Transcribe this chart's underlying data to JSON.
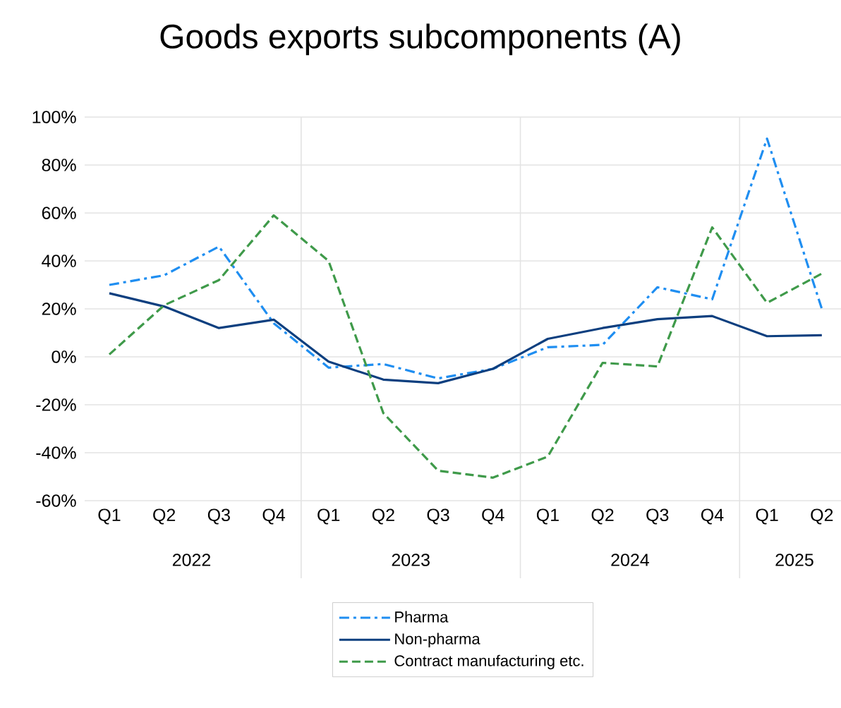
{
  "chart_data": {
    "type": "line",
    "title": "Goods exports subcomponents (A)",
    "categories": [
      "Q1",
      "Q2",
      "Q3",
      "Q4",
      "Q1",
      "Q2",
      "Q3",
      "Q4",
      "Q1",
      "Q2",
      "Q3",
      "Q4",
      "Q1",
      "Q2"
    ],
    "annotations": [
      "2022",
      "2023",
      "2024",
      "2025"
    ],
    "series": [
      {
        "name": "Pharma",
        "color": "#1f8ef1",
        "line_style": "dashed",
        "values": [
          30,
          34,
          46,
          14,
          -4.5,
          -3,
          -9,
          -5,
          4,
          5,
          29,
          24,
          91,
          20
        ]
      },
      {
        "name": "Non-pharma",
        "color": "#0d3f7f",
        "line_style": "solid",
        "values": [
          26.5,
          21,
          12,
          15.5,
          -2,
          -9.5,
          -11,
          -5,
          7.5,
          12,
          15.7,
          17,
          8.6,
          9
        ]
      },
      {
        "name": "Contract manufacturing etc.",
        "color": "#3f9a4a",
        "line_style": "dashed",
        "values": [
          1,
          21.5,
          32,
          59,
          40,
          -23.5,
          -47.5,
          -50.4,
          -41.6,
          -2.5,
          -4,
          54,
          22.5,
          34.7
        ]
      }
    ],
    "ylim": [
      -60,
      100
    ],
    "yticks": [
      {
        "value": -60,
        "label": "-60%"
      },
      {
        "value": -40,
        "label": "-40%"
      },
      {
        "value": -20,
        "label": "-20%"
      },
      {
        "value": 0,
        "label": "0%"
      },
      {
        "value": 20,
        "label": "20%"
      },
      {
        "value": 40,
        "label": "40%"
      },
      {
        "value": 60,
        "label": "60%"
      },
      {
        "value": 80,
        "label": "80%"
      },
      {
        "value": 100,
        "label": "100%"
      }
    ],
    "grid": "y",
    "legend": "bottom",
    "marker": "none"
  }
}
